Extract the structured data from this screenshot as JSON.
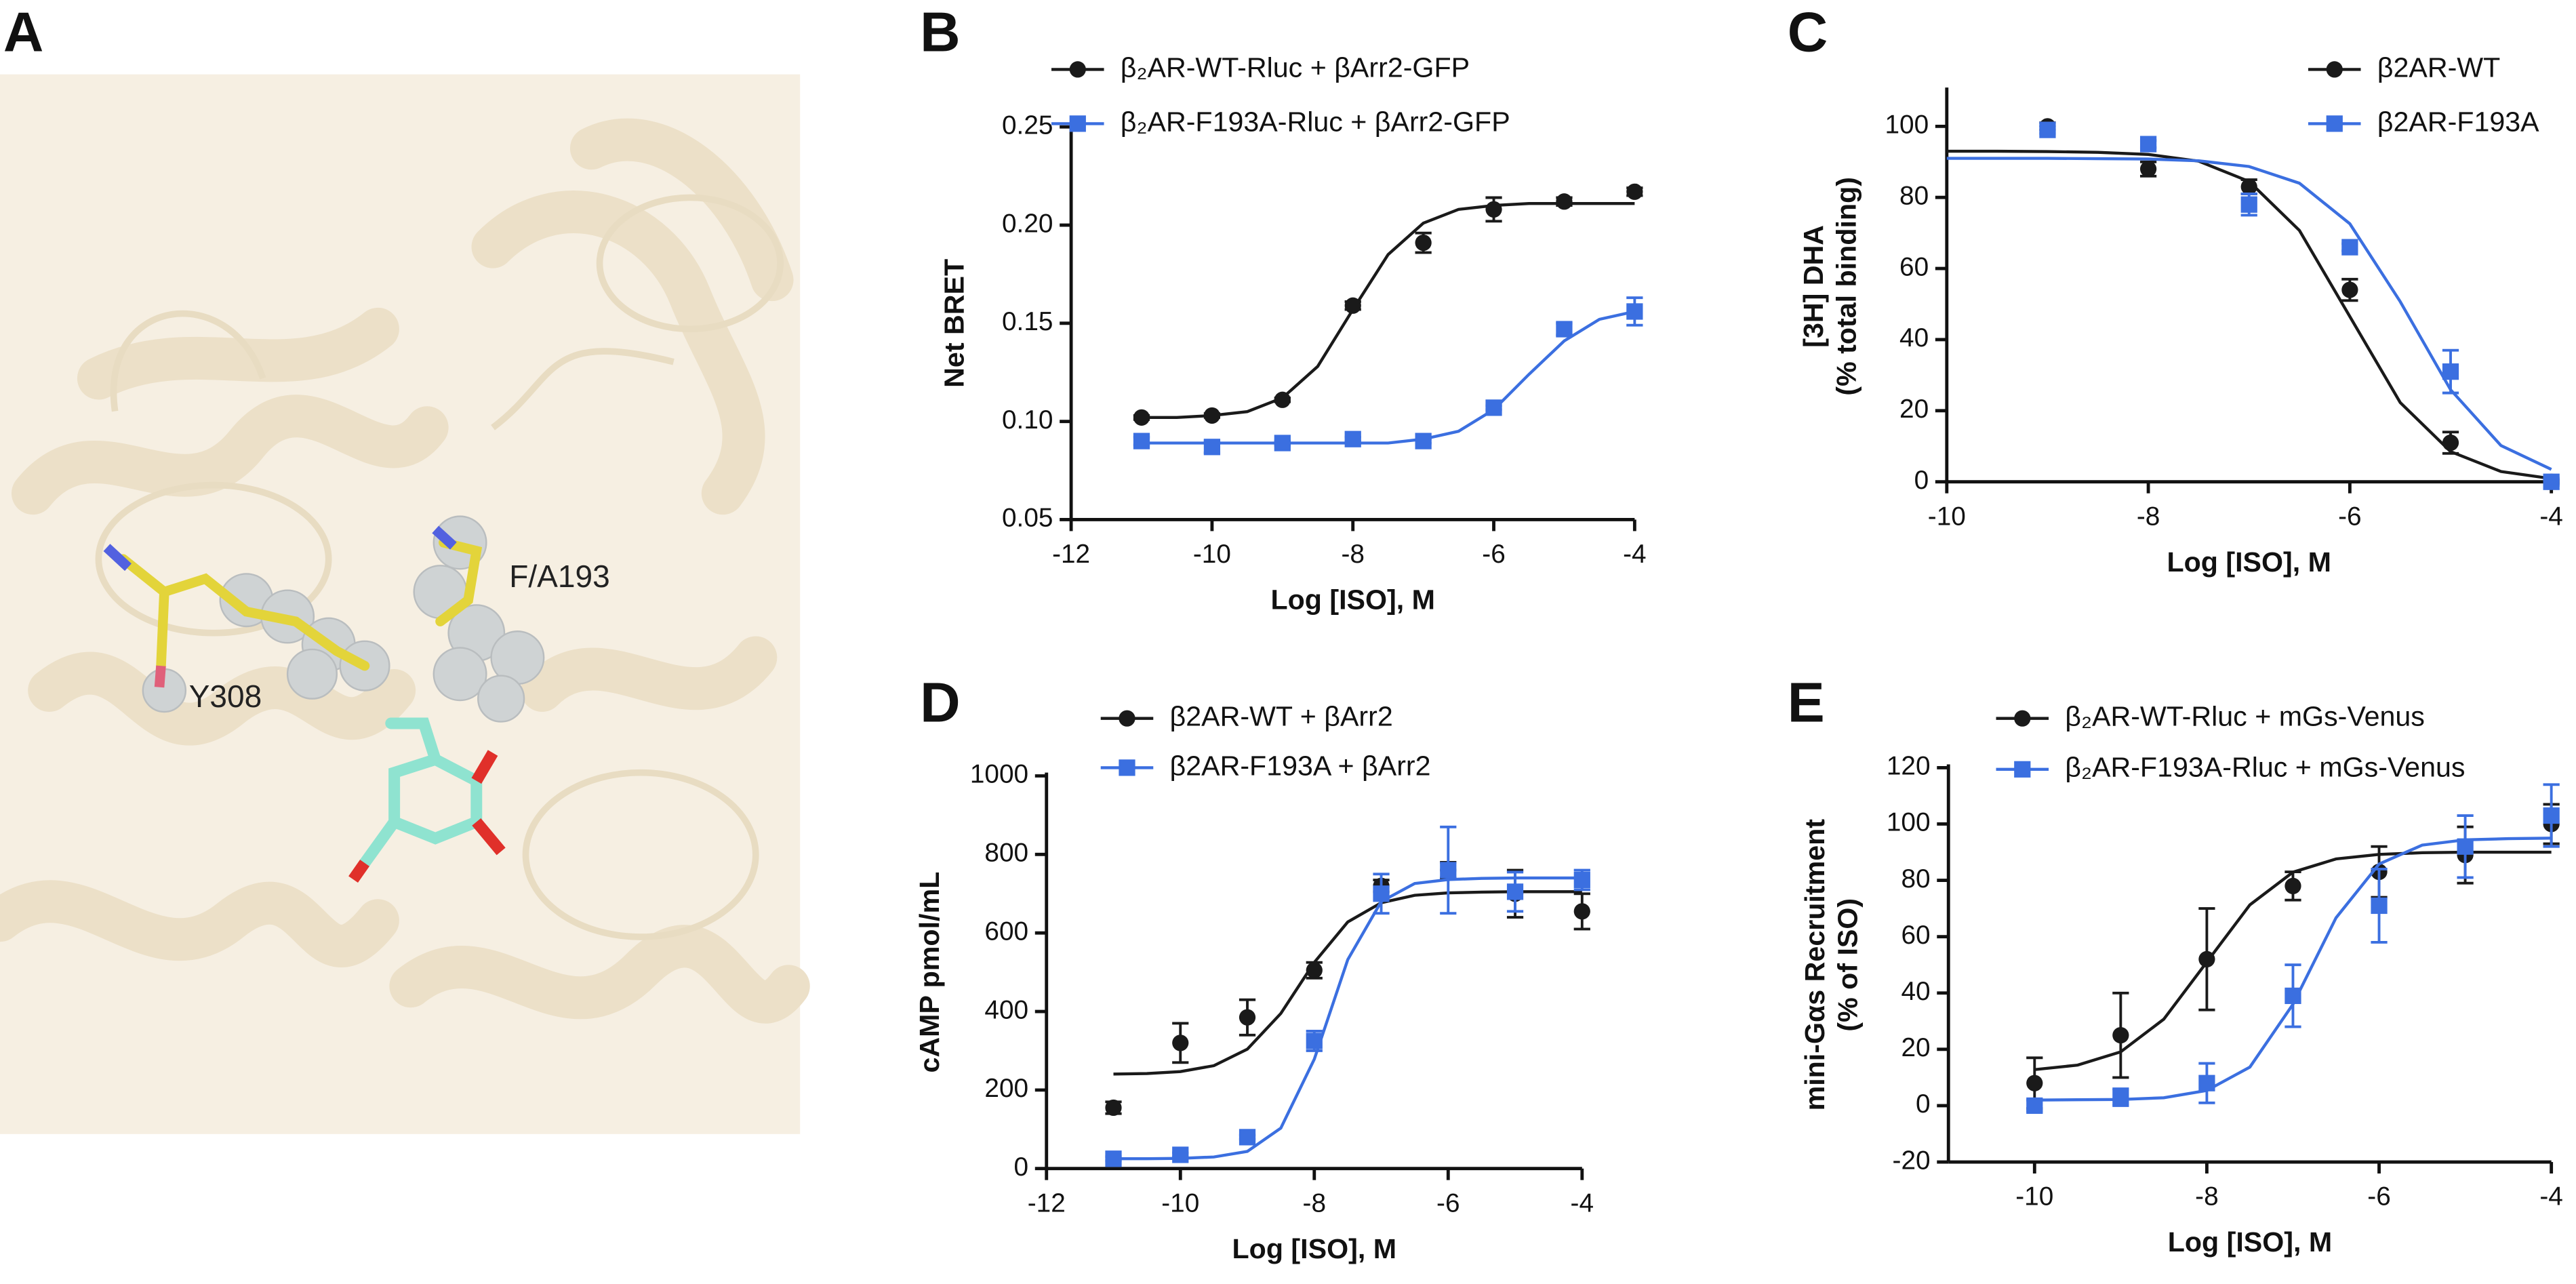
{
  "panel_a": {
    "panel": "A",
    "labels": [
      "Y308",
      "F/A193"
    ]
  },
  "chart_data": [
    {
      "panel": "B",
      "type": "scatter",
      "x_label": "Log [ISO], M",
      "y_label": [
        "Net BRET"
      ],
      "x": [
        -11,
        -10,
        -9,
        -8,
        -7,
        -6,
        -5,
        -4
      ],
      "xlim": [
        -12,
        -4
      ],
      "xticks": [
        -12,
        -10,
        -8,
        -6,
        -4
      ],
      "ylim": [
        0.05,
        0.25
      ],
      "yticks": [
        {
          "value": 0.05,
          "label": "0.05"
        },
        {
          "value": 0.1,
          "label": "0.10"
        },
        {
          "value": 0.15,
          "label": "0.15"
        },
        {
          "value": 0.2,
          "label": "0.20"
        },
        {
          "value": 0.25,
          "label": "0.25"
        }
      ],
      "series": [
        {
          "name": "β₂AR-WT-Rluc + βArr2-GFP",
          "color": "#1a1a1a",
          "marker": "circle",
          "values": [
            0.102,
            0.103,
            0.111,
            0.159,
            0.191,
            0.208,
            0.212,
            0.217
          ],
          "errors": [
            0.001,
            0.001,
            0.001,
            0.002,
            0.005,
            0.006,
            0.002,
            0.002
          ],
          "fit": {
            "x": [
              -11,
              -10.5,
              -10,
              -9.5,
              -9,
              -8.5,
              -8,
              -7.5,
              -7,
              -6.5,
              -6,
              -5.5,
              -5,
              -4.5,
              -4
            ],
            "values": [
              0.102,
              0.102,
              0.103,
              0.105,
              0.112,
              0.128,
              0.157,
              0.185,
              0.201,
              0.208,
              0.21,
              0.211,
              0.211,
              0.211,
              0.211
            ]
          }
        },
        {
          "name": "β₂AR-F193A-Rluc + βArr2-GFP",
          "color": "#3b6fe0",
          "marker": "square",
          "values": [
            0.09,
            0.087,
            0.089,
            0.091,
            0.09,
            0.107,
            0.147,
            0.156
          ],
          "errors": [
            0.002,
            0.003,
            0.001,
            0.001,
            0.001,
            0.001,
            0.003,
            0.007
          ],
          "fit": {
            "x": [
              -11,
              -10.5,
              -10,
              -9.5,
              -9,
              -8.5,
              -8,
              -7.5,
              -7,
              -6.5,
              -6,
              -5.5,
              -5,
              -4.5,
              -4
            ],
            "values": [
              0.089,
              0.089,
              0.089,
              0.089,
              0.089,
              0.089,
              0.089,
              0.089,
              0.091,
              0.095,
              0.106,
              0.124,
              0.141,
              0.152,
              0.156
            ]
          }
        }
      ]
    },
    {
      "panel": "C",
      "type": "scatter",
      "x_label": "Log [ISO], M",
      "y_label": [
        "[3H] DHA",
        "(% total binding)"
      ],
      "x": [
        -9,
        -8,
        -7,
        -6,
        -5,
        -4
      ],
      "xlim": [
        -10,
        -4
      ],
      "xticks": [
        -10,
        -8,
        -6,
        -4
      ],
      "ylim": [
        0,
        110
      ],
      "yticks": [
        0,
        20,
        40,
        60,
        80,
        100
      ],
      "series": [
        {
          "name": "β2AR-WT",
          "color": "#1a1a1a",
          "marker": "circle",
          "values": [
            100,
            88,
            83,
            54,
            11,
            0
          ],
          "errors": [
            1,
            2,
            2,
            3,
            3,
            0.5
          ],
          "fit": {
            "x": [
              -10,
              -9.5,
              -9,
              -8.5,
              -8,
              -7.5,
              -7,
              -6.5,
              -6,
              -5.5,
              -5,
              -4.5,
              -4
            ],
            "values": [
              93,
              93,
              92.9,
              92.7,
              92.1,
              90.2,
              84.5,
              70.7,
              46.5,
              22.3,
              8.5,
              2.9,
              0.9
            ]
          }
        },
        {
          "name": "β2AR-F193A",
          "color": "#3b6fe0",
          "marker": "square",
          "values": [
            99,
            95,
            78,
            66,
            31,
            0
          ],
          "errors": [
            1,
            1,
            3,
            1,
            6,
            1
          ],
          "fit": {
            "x": [
              -10,
              -9.5,
              -9,
              -8.5,
              -8,
              -7.5,
              -7,
              -6.5,
              -6,
              -5.5,
              -5,
              -4.5,
              -4
            ],
            "values": [
              91,
              91,
              91,
              90.9,
              90.8,
              90.3,
              88.7,
              84,
              72.6,
              50.7,
              25.9,
              10.2,
              3.5
            ]
          }
        }
      ]
    },
    {
      "panel": "D",
      "type": "scatter",
      "x_label": "Log [ISO], M",
      "y_label": [
        "cAMP pmol/mL"
      ],
      "x": [
        -11,
        -10,
        -9,
        -8,
        -7,
        -6,
        -5,
        -4
      ],
      "xlim": [
        -12,
        -4
      ],
      "xticks": [
        -12,
        -10,
        -8,
        -6,
        -4
      ],
      "ylim": [
        0,
        1000
      ],
      "yticks": [
        0,
        200,
        400,
        600,
        800,
        1000
      ],
      "series": [
        {
          "name": "β2AR-WT + βArr2",
          "color": "#1a1a1a",
          "marker": "circle",
          "values": [
            155,
            320,
            385,
            505,
            720,
            760,
            700,
            655
          ],
          "errors": [
            15,
            50,
            45,
            20,
            15,
            20,
            60,
            45
          ],
          "fit": {
            "x": [
              -11,
              -10.5,
              -10,
              -9.5,
              -9,
              -8.5,
              -8,
              -7.5,
              -7,
              -6.5,
              -6,
              -5.5,
              -5,
              -4.5,
              -4
            ],
            "values": [
              240.7,
              242,
              247,
              262,
              304,
              395,
              525,
              628,
              677,
              696,
              702,
              704,
              705,
              705,
              705
            ]
          }
        },
        {
          "name": "β2AR-F193A + βArr2",
          "color": "#3b6fe0",
          "marker": "square",
          "values": [
            25,
            35,
            80,
            325,
            700,
            760,
            705,
            735
          ],
          "errors": [
            5,
            5,
            5,
            25,
            50,
            110,
            50,
            25
          ],
          "fit": {
            "x": [
              -11,
              -10.5,
              -10,
              -9.5,
              -9,
              -8.5,
              -8,
              -7.5,
              -7,
              -6.5,
              -6,
              -5.5,
              -5,
              -4.5,
              -4
            ],
            "values": [
              25,
              25.2,
              26,
              29.5,
              43.7,
              103,
              278.5,
              532,
              680,
              726,
              736,
              739,
              740,
              740,
              740
            ]
          }
        }
      ]
    },
    {
      "panel": "E",
      "type": "scatter",
      "x_label": "Log [ISO], M",
      "y_label": [
        "mini-Gαs Recruitment",
        "(% of ISO)"
      ],
      "x": [
        -10,
        -9,
        -8,
        -7,
        -6,
        -5,
        -4
      ],
      "xlim": [
        -11,
        -4
      ],
      "xticks": [
        -10,
        -8,
        -6,
        -4
      ],
      "ylim": [
        -20,
        120
      ],
      "yticks": [
        -20,
        0,
        20,
        40,
        60,
        80,
        100,
        120
      ],
      "series": [
        {
          "name": "β₂AR-WT-Rluc + mGs-Venus",
          "color": "#1a1a1a",
          "marker": "circle",
          "values": [
            8,
            25,
            52,
            78,
            83,
            89,
            100
          ],
          "errors": [
            9,
            15,
            18,
            5,
            9,
            10,
            7
          ],
          "fit": {
            "x": [
              -10,
              -9.5,
              -9,
              -8.5,
              -8,
              -7.5,
              -7,
              -6.5,
              -6,
              -5.5,
              -5,
              -4.5,
              -4
            ],
            "values": [
              12.8,
              14.4,
              19.1,
              30.7,
              51,
              71.3,
              82.9,
              87.6,
              89.2,
              89.8,
              90,
              90,
              90
            ]
          }
        },
        {
          "name": "β₂AR-F193A-Rluc + mGs-Venus",
          "color": "#3b6fe0",
          "marker": "square",
          "values": [
            0,
            3,
            8,
            39,
            71,
            92,
            103
          ],
          "errors": [
            2,
            3,
            7,
            11,
            13,
            11,
            11
          ],
          "fit": {
            "x": [
              -10,
              -9.5,
              -9,
              -8.5,
              -8,
              -7.5,
              -7,
              -6.5,
              -6,
              -5.5,
              -5,
              -4.5,
              -4
            ],
            "values": [
              2,
              2.1,
              2.2,
              2.8,
              5.4,
              13.7,
              36,
              66.7,
              85.8,
              92.5,
              94.4,
              94.8,
              95
            ]
          }
        }
      ]
    }
  ]
}
